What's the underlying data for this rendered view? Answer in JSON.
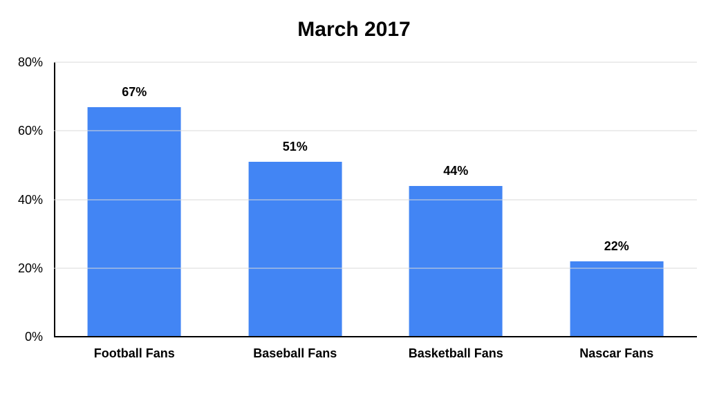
{
  "chart_data": {
    "type": "bar",
    "title": "March 2017",
    "categories": [
      "Football Fans",
      "Baseball Fans",
      "Basketball Fans",
      "Nascar Fans"
    ],
    "values": [
      67,
      51,
      44,
      22
    ],
    "value_labels": [
      "67%",
      "51%",
      "44%",
      "22%"
    ],
    "xlabel": "",
    "ylabel": "",
    "ylim": [
      0,
      80
    ],
    "yticks": [
      0,
      20,
      40,
      60,
      80
    ],
    "ytick_labels": [
      "0%",
      "20%",
      "40%",
      "60%",
      "80%"
    ],
    "bar_color": "#4285f4",
    "grid": true,
    "legend_position": "none",
    "background_color": "#ffffff"
  }
}
